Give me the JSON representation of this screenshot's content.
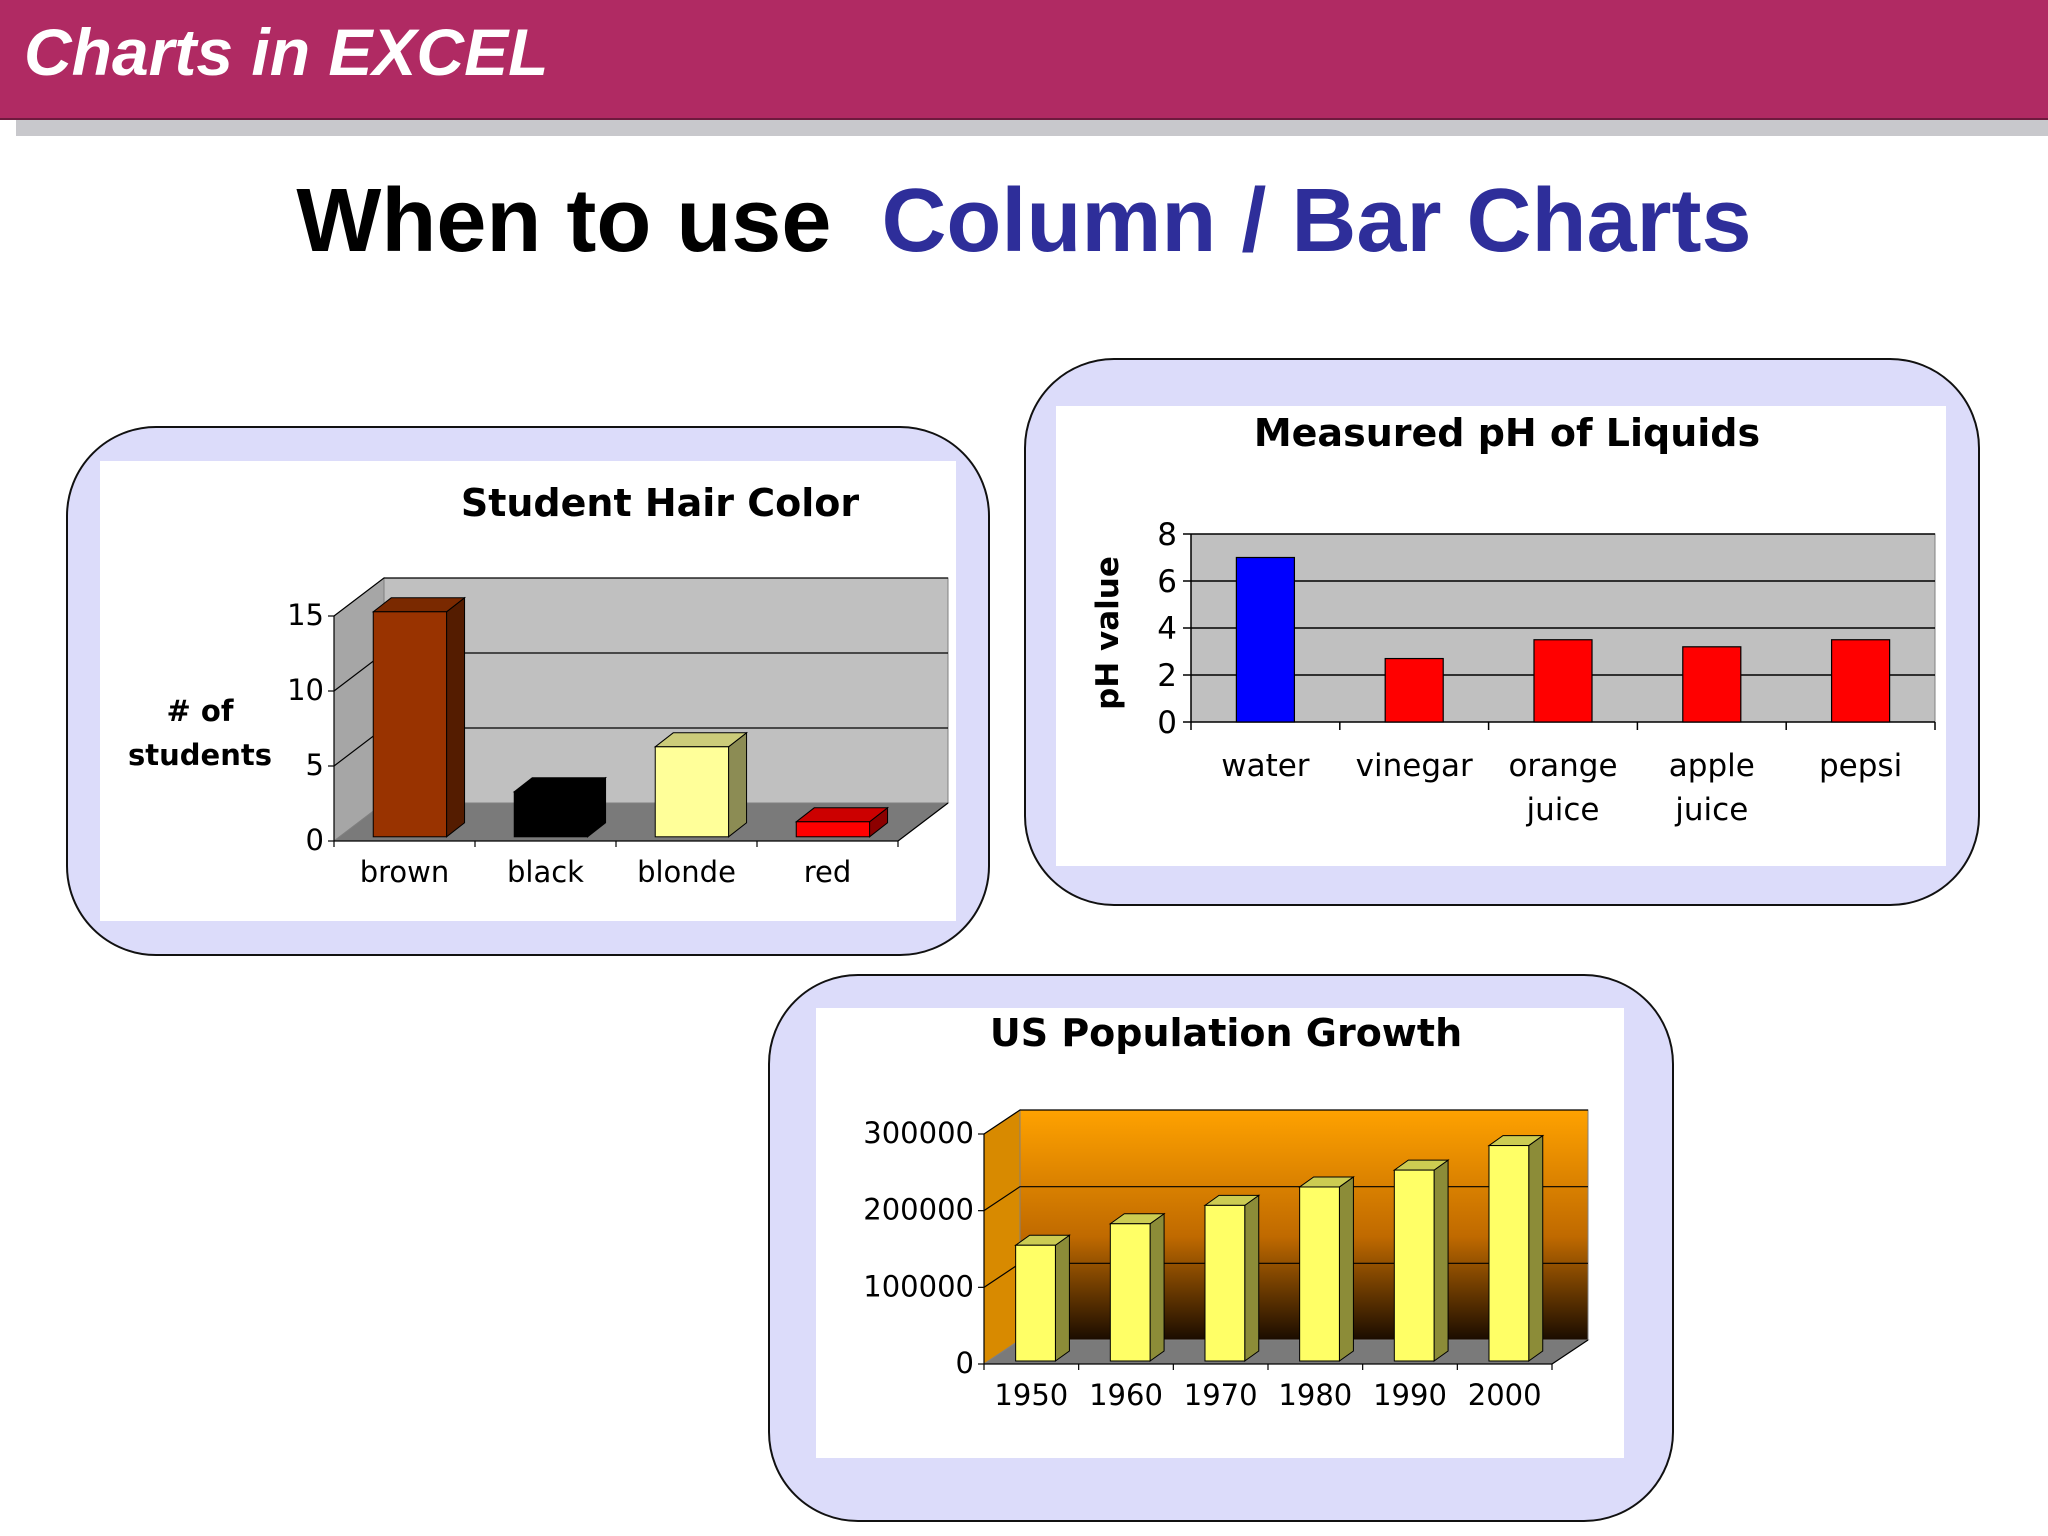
{
  "header": {
    "title": "Charts in EXCEL"
  },
  "slide": {
    "title_prefix": "When to use",
    "title_accent": "Column / Bar Charts"
  },
  "colors": {
    "header": "#b02a63",
    "accent": "#2e2e9a",
    "panel": "#dcdcfa"
  },
  "chart_data": [
    {
      "type": "bar",
      "title": "Student Hair Color",
      "ylabel": "# of students",
      "xlabel": "",
      "categories": [
        "brown",
        "black",
        "blonde",
        "red"
      ],
      "values": [
        15,
        3,
        6,
        1
      ],
      "colors": [
        "#993300",
        "#000000",
        "#ffff99",
        "#ff0000"
      ],
      "ylim": [
        0,
        15
      ],
      "yticks": [
        "0",
        "5",
        "10",
        "15"
      ],
      "style": "3d",
      "grid": true,
      "legend": "none"
    },
    {
      "type": "bar",
      "title": "Measured pH of Liquids",
      "ylabel": "pH value",
      "xlabel": "",
      "categories": [
        "water",
        "vinegar",
        "orange juice",
        "apple juice",
        "pepsi"
      ],
      "values": [
        7,
        2.7,
        3.5,
        3.2,
        3.5
      ],
      "colors": [
        "#0000ff",
        "#ff0000",
        "#ff0000",
        "#ff0000",
        "#ff0000"
      ],
      "ylim": [
        0,
        8
      ],
      "yticks": [
        "0",
        "2",
        "4",
        "6",
        "8"
      ],
      "style": "2d",
      "grid": true,
      "legend": "none"
    },
    {
      "type": "bar",
      "title": "US Population Growth",
      "ylabel": "",
      "xlabel": "",
      "categories": [
        "1950",
        "1960",
        "1970",
        "1980",
        "1990",
        "2000"
      ],
      "values": [
        151000,
        179000,
        203000,
        227000,
        249000,
        281000
      ],
      "colors": [
        "#ffff66"
      ],
      "ylim": [
        0,
        300000
      ],
      "yticks": [
        "0",
        "100000",
        "200000",
        "300000"
      ],
      "style": "3d",
      "grid": true,
      "legend": "none"
    }
  ]
}
